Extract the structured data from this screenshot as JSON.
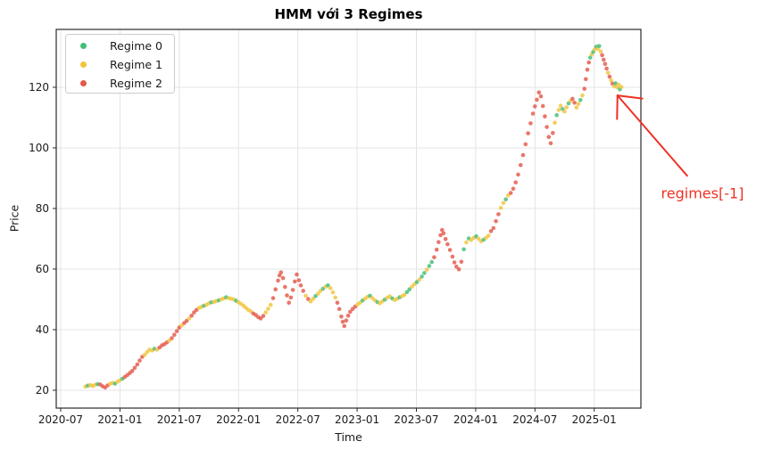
{
  "chart_data": {
    "type": "scatter",
    "title": "HMM với 3 Regimes",
    "xlabel": "Time",
    "ylabel": "Price",
    "grid": true,
    "x_axis": {
      "unit": "months since 2020-07",
      "lim": [
        -0.45,
        58.72
      ],
      "ticks": [
        {
          "t": 0,
          "label": "2020-07"
        },
        {
          "t": 6,
          "label": "2021-01"
        },
        {
          "t": 12,
          "label": "2021-07"
        },
        {
          "t": 18,
          "label": "2022-01"
        },
        {
          "t": 24,
          "label": "2022-07"
        },
        {
          "t": 30,
          "label": "2023-01"
        },
        {
          "t": 36,
          "label": "2023-07"
        },
        {
          "t": 42,
          "label": "2024-01"
        },
        {
          "t": 48,
          "label": "2024-07"
        },
        {
          "t": 54,
          "label": "2025-01"
        }
      ]
    },
    "y_axis": {
      "lim": [
        14.1,
        139.1
      ],
      "ticks": [
        20,
        40,
        60,
        80,
        100,
        120
      ]
    },
    "legend": {
      "position": "upper left",
      "items": [
        {
          "label": "Regime 0",
          "color": "#43bd77",
          "regime": 0
        },
        {
          "label": "Regime 1",
          "color": "#f0c53c",
          "regime": 1
        },
        {
          "label": "Regime 2",
          "color": "#e4584a",
          "regime": 2
        }
      ]
    },
    "annotation": {
      "text": "regimes[-1]",
      "color": "#ef3124",
      "points_to": "last observation of the series",
      "tip": {
        "t": 56.35,
        "p": 117.3
      },
      "tail": {
        "t": 63.4,
        "p": 90.8
      },
      "text_center": {
        "t": 64.95,
        "p": 84.9
      }
    },
    "points_format": [
      "months_since_2020-07",
      "price",
      "regime"
    ],
    "points": [
      [
        2.5,
        21.2,
        1
      ],
      [
        2.75,
        21.5,
        0
      ],
      [
        3,
        21.7,
        1
      ],
      [
        3.25,
        21.4,
        1
      ],
      [
        3.5,
        21.8,
        1
      ],
      [
        3.75,
        22,
        0
      ],
      [
        4,
        21.9,
        2
      ],
      [
        4.25,
        21.3,
        2
      ],
      [
        4.5,
        20.9,
        2
      ],
      [
        4.75,
        21.6,
        2
      ],
      [
        5,
        22.1,
        1
      ],
      [
        5.25,
        22.4,
        1
      ],
      [
        5.5,
        22.2,
        0
      ],
      [
        5.75,
        22.8,
        1
      ],
      [
        6,
        23.3,
        1
      ],
      [
        6.25,
        23.8,
        0
      ],
      [
        6.5,
        24.4,
        2
      ],
      [
        6.75,
        25,
        2
      ],
      [
        7,
        25.7,
        2
      ],
      [
        7.25,
        26.4,
        2
      ],
      [
        7.5,
        27.4,
        2
      ],
      [
        7.75,
        28.5,
        2
      ],
      [
        8,
        29.8,
        2
      ],
      [
        8.25,
        31,
        2
      ],
      [
        8.5,
        31.7,
        1
      ],
      [
        8.75,
        32.6,
        1
      ],
      [
        9,
        33.4,
        1
      ],
      [
        9.25,
        33.1,
        1
      ],
      [
        9.5,
        33.7,
        0
      ],
      [
        9.75,
        33.4,
        1
      ],
      [
        10,
        34.1,
        2
      ],
      [
        10.25,
        34.8,
        2
      ],
      [
        10.5,
        35.2,
        2
      ],
      [
        10.75,
        35.8,
        2
      ],
      [
        11,
        36.4,
        1
      ],
      [
        11.25,
        37.2,
        2
      ],
      [
        11.5,
        38.3,
        2
      ],
      [
        11.75,
        39.5,
        2
      ],
      [
        12,
        40.7,
        2
      ],
      [
        12.25,
        41.4,
        1
      ],
      [
        12.5,
        42.2,
        2
      ],
      [
        12.75,
        42.9,
        2
      ],
      [
        13,
        43.7,
        1
      ],
      [
        13.25,
        44.6,
        2
      ],
      [
        13.5,
        45.7,
        2
      ],
      [
        13.75,
        46.5,
        2
      ],
      [
        14,
        47.2,
        1
      ],
      [
        14.25,
        47.5,
        1
      ],
      [
        14.5,
        47.9,
        0
      ],
      [
        14.75,
        48.2,
        1
      ],
      [
        15,
        48.7,
        1
      ],
      [
        15.25,
        49,
        0
      ],
      [
        15.5,
        49.2,
        1
      ],
      [
        15.75,
        49.4,
        1
      ],
      [
        16,
        49.7,
        0
      ],
      [
        16.25,
        50,
        1
      ],
      [
        16.5,
        50.3,
        1
      ],
      [
        16.75,
        50.7,
        0
      ],
      [
        17,
        50.4,
        1
      ],
      [
        17.25,
        50.2,
        1
      ],
      [
        17.5,
        50,
        1
      ],
      [
        17.75,
        49.5,
        0
      ],
      [
        18,
        49,
        1
      ],
      [
        18.25,
        48.5,
        1
      ],
      [
        18.5,
        47.9,
        1
      ],
      [
        18.75,
        47.2,
        1
      ],
      [
        19,
        46.5,
        1
      ],
      [
        19.25,
        46,
        1
      ],
      [
        19.5,
        45.3,
        2
      ],
      [
        19.75,
        44.8,
        2
      ],
      [
        20,
        44.1,
        2
      ],
      [
        20.25,
        43.7,
        2
      ],
      [
        20.5,
        44.5,
        2
      ],
      [
        20.75,
        45.7,
        1
      ],
      [
        21,
        46.9,
        1
      ],
      [
        21.25,
        48.2,
        1
      ],
      [
        21.5,
        50.4,
        2
      ],
      [
        21.75,
        53.3,
        2
      ],
      [
        22,
        56.2,
        2
      ],
      [
        22.15,
        57.9,
        2
      ],
      [
        22.3,
        58.9,
        2
      ],
      [
        22.5,
        57,
        2
      ],
      [
        22.7,
        54.1,
        2
      ],
      [
        22.9,
        51.3,
        2
      ],
      [
        23.1,
        48.9,
        2
      ],
      [
        23.3,
        50.6,
        2
      ],
      [
        23.5,
        53.1,
        2
      ],
      [
        23.7,
        55.9,
        2
      ],
      [
        23.9,
        58.2,
        2
      ],
      [
        24.1,
        56.3,
        2
      ],
      [
        24.3,
        54.6,
        2
      ],
      [
        24.55,
        52.8,
        2
      ],
      [
        24.8,
        51.2,
        1
      ],
      [
        25.05,
        50.1,
        2
      ],
      [
        25.3,
        49.3,
        1
      ],
      [
        25.55,
        50.2,
        1
      ],
      [
        25.8,
        51.1,
        0
      ],
      [
        26.05,
        51.9,
        1
      ],
      [
        26.3,
        52.8,
        1
      ],
      [
        26.55,
        53.5,
        0
      ],
      [
        26.8,
        54.2,
        1
      ],
      [
        27.05,
        54.6,
        0
      ],
      [
        27.3,
        53.7,
        1
      ],
      [
        27.55,
        52.3,
        1
      ],
      [
        27.8,
        50.6,
        1
      ],
      [
        28,
        48.9,
        2
      ],
      [
        28.2,
        46.8,
        2
      ],
      [
        28.4,
        44.3,
        2
      ],
      [
        28.55,
        42.6,
        2
      ],
      [
        28.7,
        41.2,
        2
      ],
      [
        28.9,
        43,
        2
      ],
      [
        29.1,
        44.6,
        2
      ],
      [
        29.3,
        45.9,
        2
      ],
      [
        29.55,
        46.8,
        2
      ],
      [
        29.8,
        47.6,
        2
      ],
      [
        30.05,
        48.3,
        1
      ],
      [
        30.3,
        48.9,
        1
      ],
      [
        30.55,
        49.6,
        0
      ],
      [
        30.8,
        50.2,
        1
      ],
      [
        31.05,
        50.8,
        1
      ],
      [
        31.3,
        51.2,
        0
      ],
      [
        31.55,
        50.4,
        1
      ],
      [
        31.8,
        49.7,
        1
      ],
      [
        32.05,
        49.1,
        0
      ],
      [
        32.3,
        48.7,
        1
      ],
      [
        32.55,
        49.3,
        1
      ],
      [
        32.8,
        49.9,
        0
      ],
      [
        33.05,
        50.5,
        1
      ],
      [
        33.3,
        51,
        1
      ],
      [
        33.55,
        50.3,
        0
      ],
      [
        33.8,
        49.8,
        1
      ],
      [
        34.05,
        50.2,
        1
      ],
      [
        34.3,
        50.7,
        0
      ],
      [
        34.55,
        51,
        1
      ],
      [
        34.8,
        51.5,
        1
      ],
      [
        35.05,
        52.4,
        0
      ],
      [
        35.3,
        53.3,
        0
      ],
      [
        35.55,
        54.2,
        1
      ],
      [
        35.8,
        55,
        1
      ],
      [
        36.05,
        55.7,
        0
      ],
      [
        36.3,
        56.5,
        1
      ],
      [
        36.55,
        57.5,
        0
      ],
      [
        36.8,
        58.7,
        0
      ],
      [
        37.05,
        59.8,
        1
      ],
      [
        37.3,
        61,
        0
      ],
      [
        37.55,
        62.3,
        0
      ],
      [
        37.8,
        63.9,
        2
      ],
      [
        38.05,
        66.4,
        2
      ],
      [
        38.25,
        68.9,
        2
      ],
      [
        38.45,
        71.2,
        2
      ],
      [
        38.6,
        72.9,
        2
      ],
      [
        38.75,
        71.8,
        2
      ],
      [
        38.95,
        69.9,
        2
      ],
      [
        39.15,
        68.2,
        2
      ],
      [
        39.4,
        66.3,
        2
      ],
      [
        39.65,
        64.1,
        2
      ],
      [
        39.85,
        62.2,
        2
      ],
      [
        40.05,
        60.8,
        2
      ],
      [
        40.3,
        59.9,
        2
      ],
      [
        40.55,
        62.4,
        2
      ],
      [
        40.8,
        66.5,
        0
      ],
      [
        41.05,
        68.8,
        1
      ],
      [
        41.3,
        70.1,
        0
      ],
      [
        41.55,
        69.6,
        1
      ],
      [
        41.8,
        70.3,
        1
      ],
      [
        42.05,
        70.8,
        0
      ],
      [
        42.3,
        70,
        1
      ],
      [
        42.55,
        69.2,
        1
      ],
      [
        42.8,
        69.7,
        0
      ],
      [
        43.05,
        70.3,
        1
      ],
      [
        43.3,
        71,
        1
      ],
      [
        43.55,
        72.5,
        2
      ],
      [
        43.8,
        73.5,
        2
      ],
      [
        44.05,
        75.8,
        2
      ],
      [
        44.3,
        78.1,
        2
      ],
      [
        44.55,
        80.2,
        1
      ],
      [
        44.8,
        81.8,
        1
      ],
      [
        45.05,
        83,
        0
      ],
      [
        45.3,
        84.3,
        1
      ],
      [
        45.55,
        85.1,
        2
      ],
      [
        45.8,
        86.5,
        2
      ],
      [
        46.05,
        88.6,
        2
      ],
      [
        46.3,
        91.2,
        2
      ],
      [
        46.55,
        94.3,
        2
      ],
      [
        46.8,
        97.6,
        2
      ],
      [
        47.05,
        101.2,
        2
      ],
      [
        47.3,
        104.8,
        2
      ],
      [
        47.55,
        108.1,
        2
      ],
      [
        47.8,
        111.3,
        2
      ],
      [
        48,
        113.7,
        2
      ],
      [
        48.2,
        115.9,
        2
      ],
      [
        48.4,
        118.3,
        2
      ],
      [
        48.6,
        117,
        2
      ],
      [
        48.8,
        113.8,
        2
      ],
      [
        49,
        110.4,
        2
      ],
      [
        49.2,
        106.9,
        2
      ],
      [
        49.4,
        103.6,
        2
      ],
      [
        49.6,
        101.5,
        2
      ],
      [
        49.8,
        104.9,
        2
      ],
      [
        50,
        108.3,
        1
      ],
      [
        50.2,
        110.8,
        0
      ],
      [
        50.4,
        112.5,
        1
      ],
      [
        50.6,
        113.9,
        1
      ],
      [
        50.8,
        112.8,
        0
      ],
      [
        51,
        112,
        1
      ],
      [
        51.2,
        113.4,
        1
      ],
      [
        51.4,
        114.7,
        0
      ],
      [
        51.6,
        115.5,
        1
      ],
      [
        51.8,
        116.2,
        2
      ],
      [
        52,
        114.9,
        2
      ],
      [
        52.2,
        113.3,
        1
      ],
      [
        52.4,
        114.5,
        1
      ],
      [
        52.6,
        115.8,
        0
      ],
      [
        52.8,
        117.3,
        1
      ],
      [
        53,
        119.5,
        2
      ],
      [
        53.15,
        122.7,
        2
      ],
      [
        53.3,
        125.8,
        2
      ],
      [
        53.45,
        128.2,
        2
      ],
      [
        53.6,
        129.8,
        0
      ],
      [
        53.75,
        130.9,
        1
      ],
      [
        53.9,
        131.7,
        0
      ],
      [
        54.05,
        132.5,
        1
      ],
      [
        54.2,
        133.4,
        0
      ],
      [
        54.35,
        132.7,
        1
      ],
      [
        54.5,
        133.6,
        0
      ],
      [
        54.65,
        131.8,
        1
      ],
      [
        54.8,
        130.6,
        2
      ],
      [
        54.95,
        129.1,
        2
      ],
      [
        55.1,
        127.7,
        2
      ],
      [
        55.25,
        126.2,
        2
      ],
      [
        55.4,
        124.8,
        1
      ],
      [
        55.55,
        123.5,
        2
      ],
      [
        55.7,
        122.3,
        1
      ],
      [
        55.85,
        121.2,
        2
      ],
      [
        56,
        120.4,
        1
      ],
      [
        56.15,
        121.3,
        0
      ],
      [
        56.3,
        120,
        1
      ],
      [
        56.45,
        120.9,
        1
      ],
      [
        56.6,
        119.3,
        0
      ],
      [
        56.75,
        120.1,
        1
      ]
    ]
  }
}
